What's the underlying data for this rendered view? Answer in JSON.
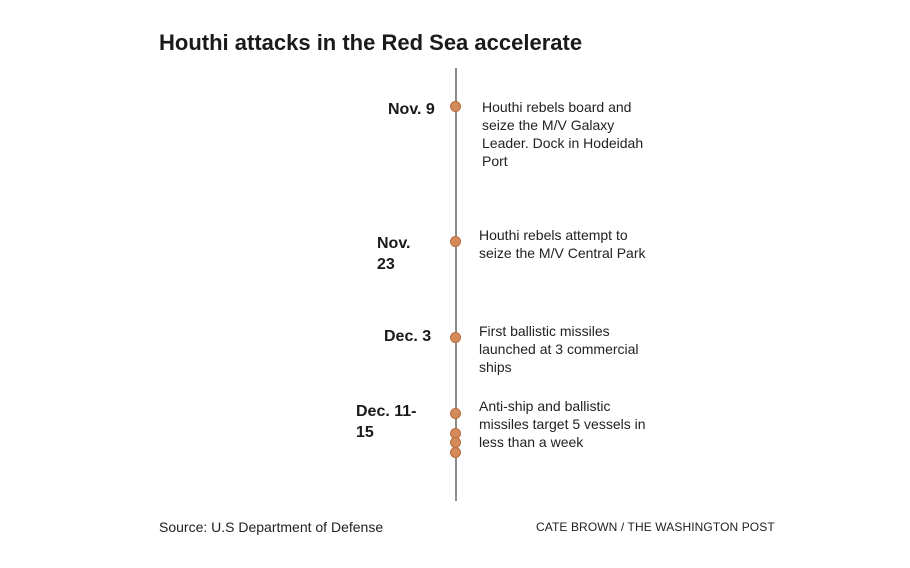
{
  "title": "Houthi attacks in the Red Sea accelerate",
  "events": [
    {
      "date_lines": [
        "Nov. 9"
      ],
      "description": "Houthi rebels board and seize the M/V Galaxy Leader. Dock in Hodeidah Port"
    },
    {
      "date_lines": [
        "Nov.",
        "23"
      ],
      "description": "Houthi rebels attempt to seize the M/V Central Park"
    },
    {
      "date_lines": [
        "Dec. 3"
      ],
      "description": "First ballistic missiles launched at 3 commercial ships"
    },
    {
      "date_lines": [
        "Dec. 11-",
        "15"
      ],
      "description": "Anti-ship and ballistic missiles target 5 vessels in less than a week"
    }
  ],
  "source": "Source: U.S Department of Defense",
  "credit": "CATE BROWN / THE WASHINGTON POST",
  "colors": {
    "dot": "#d48a5a",
    "line": "#8c8c8c"
  }
}
